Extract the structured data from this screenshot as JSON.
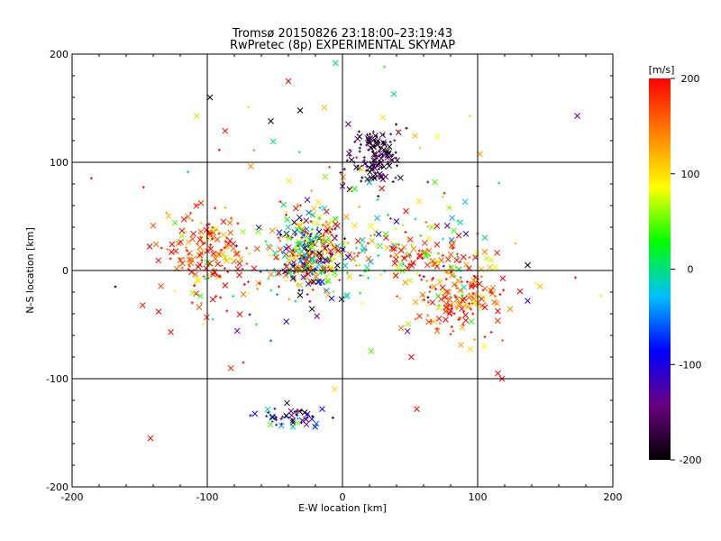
{
  "chart_data": {
    "type": "scatter",
    "title": "Tromsø 20150826 23:18:00–23:19:43",
    "subtitle": "RwPretec (8p) EXPERIMENTAL SKYMAP",
    "xlabel": "E-W location [km]",
    "ylabel": "N-S location [km]",
    "xlim": [
      -200,
      200
    ],
    "ylim": [
      -200,
      200
    ],
    "xticks": [
      -200,
      -100,
      0,
      100,
      200
    ],
    "yticks": [
      -200,
      -100,
      0,
      100,
      200
    ],
    "grid": true,
    "colorbar": {
      "label": "[m/s]",
      "range": [
        -200,
        200
      ],
      "ticks": [
        200,
        100,
        0,
        -100,
        -200
      ],
      "colors": [
        "#000000",
        "#6a0080",
        "#0000ff",
        "#00c0ff",
        "#00ff00",
        "#ffff00",
        "#ff8000",
        "#ff0000"
      ]
    },
    "markers": {
      "cross": "x",
      "dot": "+"
    },
    "clusters": [
      {
        "cx": -25,
        "cy": 15,
        "sx": 14,
        "sy": 18,
        "n": 380,
        "vmean": 40,
        "vsd": 150
      },
      {
        "cx": -100,
        "cy": 15,
        "sx": 18,
        "sy": 20,
        "n": 170,
        "vmean": 170,
        "vsd": 50
      },
      {
        "cx": 25,
        "cy": 105,
        "sx": 9,
        "sy": 14,
        "n": 140,
        "vmean": -180,
        "vsd": 30
      },
      {
        "cx": 85,
        "cy": -25,
        "sx": 18,
        "sy": 18,
        "n": 170,
        "vmean": 160,
        "vsd": 55
      },
      {
        "cx": 50,
        "cy": 15,
        "sx": 28,
        "sy": 14,
        "n": 120,
        "vmean": 120,
        "vsd": 120
      },
      {
        "cx": -35,
        "cy": -135,
        "sx": 13,
        "sy": 5,
        "n": 50,
        "vmean": -140,
        "vsd": 70
      },
      {
        "cx": 0,
        "cy": 30,
        "sx": 70,
        "sy": 65,
        "n": 160,
        "vmean": 90,
        "vsd": 130
      }
    ],
    "isolated_points": [
      {
        "x": -40,
        "y": 175,
        "v": 200,
        "m": "x"
      },
      {
        "x": -98,
        "y": 160,
        "v": -200,
        "m": "x"
      },
      {
        "x": 38,
        "y": 163,
        "v": 0,
        "m": "x"
      },
      {
        "x": -53,
        "y": 138,
        "v": -200,
        "m": "x"
      },
      {
        "x": -142,
        "y": -155,
        "v": 200,
        "m": "x"
      },
      {
        "x": 55,
        "y": -128,
        "v": 200,
        "m": "x"
      },
      {
        "x": 115,
        "y": -95,
        "v": 200,
        "m": "x"
      },
      {
        "x": 118,
        "y": -100,
        "v": 200,
        "m": "x"
      },
      {
        "x": 137,
        "y": 5,
        "v": -200,
        "m": "x"
      },
      {
        "x": 137,
        "y": -28,
        "v": -100,
        "m": "x"
      },
      {
        "x": -127,
        "y": -57,
        "v": 200,
        "m": "x"
      },
      {
        "x": -136,
        "y": -38,
        "v": 200,
        "m": "x"
      },
      {
        "x": -168,
        "y": -15,
        "v": -200,
        "m": "+"
      },
      {
        "x": -15,
        "y": -128,
        "v": -100,
        "m": "x"
      },
      {
        "x": 100,
        "y": 78,
        "v": -200,
        "m": "+"
      },
      {
        "x": 128,
        "y": 25,
        "v": 120,
        "m": "+"
      }
    ]
  }
}
